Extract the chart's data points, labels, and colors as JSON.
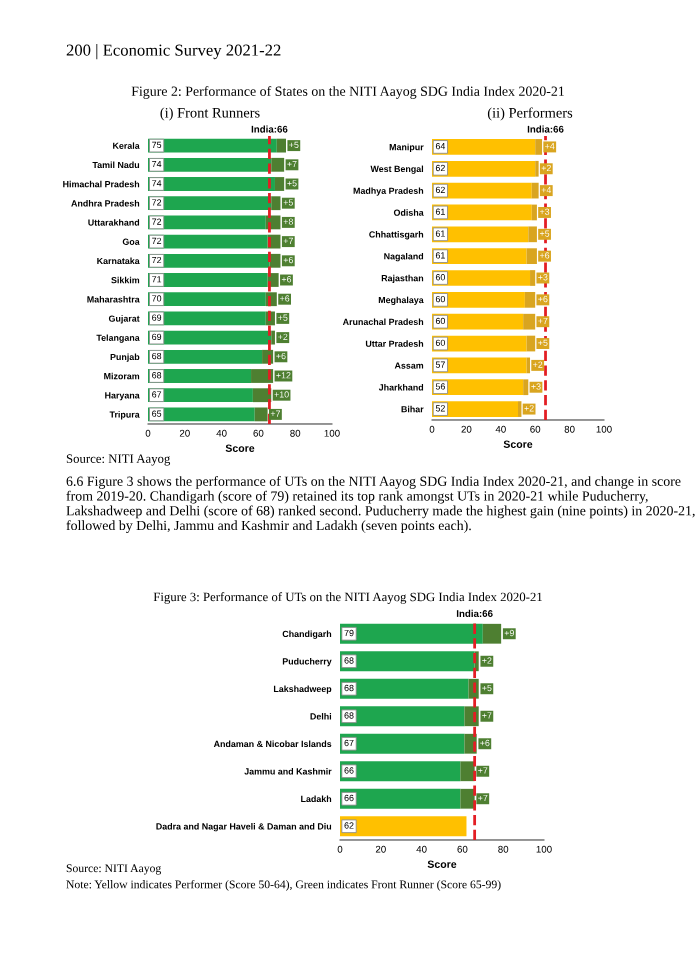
{
  "chart_data": [
    {
      "type": "bar",
      "orientation": "horizontal",
      "stacked": true,
      "title": "(i) Front Runners",
      "xlabel": "Score",
      "annotations": [
        "200 | Economic Survey 2021-22",
        "Figure 2: Performance of States on the NITI Aayog SDG India Index 2020-21",
        "Source: NITI Aayog",
        "6.6 Figure 3 shows the performance of UTs on the NITI Aayog SDG India Index 2020-21, and change in score from 2019-20. Chandigarh (score of 79) retained its top rank amongst UTs in 2020-21 while Puducherry, Lakshadweep and Delhi (score of 68) ranked second. Puducherry made the highest gain (nine points) in 2020-21, followed by Delhi, Jammu and Kashmir and Ladakh (seven points each)."
      ],
      "categories": [
        "Kerala",
        "Tamil Nadu",
        "Himachal Pradesh",
        "Andhra Pradesh",
        "Uttarakhand",
        "Goa",
        "Karnataka",
        "Sikkim",
        "Maharashtra",
        "Gujarat",
        "Telangana",
        "Punjab",
        "Mizoram",
        "Haryana",
        "Tripura"
      ],
      "series": [
        {
          "color": "#1ea64f",
          "values": [
            70,
            67,
            69,
            67,
            64,
            65,
            66,
            65,
            64,
            64,
            67,
            62,
            56,
            57,
            58
          ]
        },
        {
          "color": "#4e7f31",
          "values": [
            5,
            7,
            5,
            5,
            8,
            7,
            6,
            6,
            6,
            5,
            2,
            6,
            12,
            10,
            7
          ],
          "value_labels": [
            "+5",
            "+7",
            "+5",
            "+5",
            "+8",
            "+7",
            "+6",
            "+6",
            "+6",
            "+5",
            "+2",
            "+6",
            "+12",
            "+10",
            "+7"
          ]
        }
      ],
      "totals": [
        "75",
        "74",
        "74",
        "72",
        "72",
        "72",
        "72",
        "71",
        "70",
        "69",
        "69",
        "68",
        "68",
        "67",
        "65"
      ],
      "ref_lines": [
        {
          "axis": "x",
          "value": 66,
          "label": "India:66",
          "color": "#e31e24",
          "line_style": "dashed"
        }
      ],
      "xlim": [
        0,
        100
      ],
      "xticks": [
        0,
        20,
        40,
        60,
        80,
        100
      ],
      "grid": false,
      "legend": false
    },
    {
      "type": "bar",
      "orientation": "horizontal",
      "stacked": true,
      "title": "(ii) Performers",
      "xlabel": "Score",
      "categories": [
        "Manipur",
        "West Bengal",
        "Madhya Pradesh",
        "Odisha",
        "Chhattisgarh",
        "Nagaland",
        "Rajasthan",
        "Meghalaya",
        "Arunachal Pradesh",
        "Uttar Pradesh",
        "Assam",
        "Jharkhand",
        "Bihar"
      ],
      "series": [
        {
          "color": "#ffc000",
          "values": [
            60,
            60,
            58,
            58,
            56,
            55,
            57,
            54,
            53,
            55,
            55,
            53,
            50
          ]
        },
        {
          "color": "#d9a520",
          "values": [
            4,
            2,
            4,
            3,
            5,
            6,
            3,
            6,
            7,
            5,
            2,
            3,
            2
          ],
          "value_labels": [
            "+4",
            "+2",
            "+4",
            "+3",
            "+5",
            "+6",
            "+3",
            "+6",
            "+7",
            "+5",
            "+2",
            "+3",
            "+2"
          ]
        }
      ],
      "totals": [
        "64",
        "62",
        "62",
        "61",
        "61",
        "61",
        "60",
        "60",
        "60",
        "60",
        "57",
        "56",
        "52"
      ],
      "ref_lines": [
        {
          "axis": "x",
          "value": 66,
          "label": "India:66",
          "color": "#e31e24",
          "line_style": "dashed"
        }
      ],
      "xlim": [
        0,
        100
      ],
      "xticks": [
        0,
        20,
        40,
        60,
        80,
        100
      ],
      "grid": false,
      "legend": false
    },
    {
      "type": "bar",
      "orientation": "horizontal",
      "stacked": true,
      "title": "Figure 3: Performance of UTs on the NITI Aayog SDG India Index 2020-21",
      "xlabel": "Score",
      "annotations": [
        "Source: NITI Aayog",
        "Note: Yellow indicates Performer (Score 50-64), Green indicates Front Runner (Score 65-99)"
      ],
      "categories": [
        "Chandigarh",
        "Puducherry",
        "Lakshadweep",
        "Delhi",
        "Andaman & Nicobar Islands",
        "Jammu and Kashmir",
        "Ladakh",
        "Dadra and Nagar Haveli & Daman and Diu"
      ],
      "series": [
        {
          "colors": [
            "#1ea64f",
            "#1ea64f",
            "#1ea64f",
            "#1ea64f",
            "#1ea64f",
            "#1ea64f",
            "#1ea64f",
            "#ffc000"
          ],
          "values": [
            70,
            66,
            63,
            61,
            61,
            59,
            59,
            62
          ]
        },
        {
          "color": "#4e7f31",
          "values": [
            9,
            2,
            5,
            7,
            6,
            7,
            7,
            null
          ],
          "value_labels": [
            "+9",
            "+2",
            "+5",
            "+7",
            "+6",
            "+7",
            "+7",
            null
          ]
        }
      ],
      "totals": [
        "79",
        "68",
        "68",
        "68",
        "67",
        "66",
        "66",
        "62"
      ],
      "ref_lines": [
        {
          "axis": "x",
          "value": 66,
          "label": "India:66",
          "color": "#e31e24",
          "line_style": "dashed"
        }
      ],
      "xlim": [
        0,
        100
      ],
      "xticks": [
        0,
        20,
        40,
        60,
        80,
        100
      ],
      "grid": false,
      "legend": false
    }
  ]
}
